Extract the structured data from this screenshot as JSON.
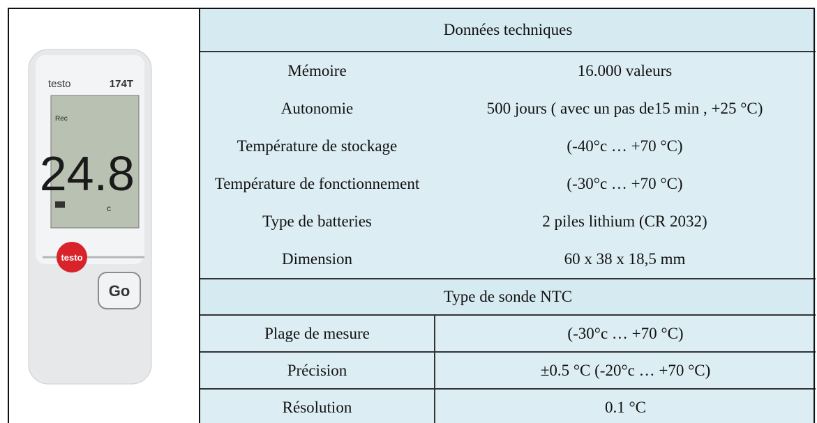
{
  "device": {
    "brand": "testo",
    "model": "174T",
    "indicator": "Rec",
    "reading": "24.8",
    "unit": "c",
    "logo": "testo",
    "button": "Go"
  },
  "table": {
    "sections": [
      {
        "title": "Données techniques",
        "rows": [
          [
            "Mémoire",
            "16.000 valeurs"
          ],
          [
            "Autonomie",
            "500 jours ( avec un pas de15 min , +25 °C)"
          ],
          [
            "Température de stockage",
            "(-40°c … +70 °C)"
          ],
          [
            "Température de fonctionnement",
            "(-30°c … +70 °C)"
          ],
          [
            "Type de batteries",
            "2 piles lithium (CR 2032)"
          ],
          [
            "Dimension",
            "60 x 38 x 18,5 mm"
          ]
        ]
      },
      {
        "title": "Type de sonde NTC",
        "rows": [
          [
            "Plage de mesure",
            "(-30°c … +70 °C)"
          ],
          [
            "Précision",
            "±0.5 °C (-20°c … +70 °C)"
          ],
          [
            "Résolution",
            "0.1 °C"
          ]
        ]
      }
    ]
  }
}
